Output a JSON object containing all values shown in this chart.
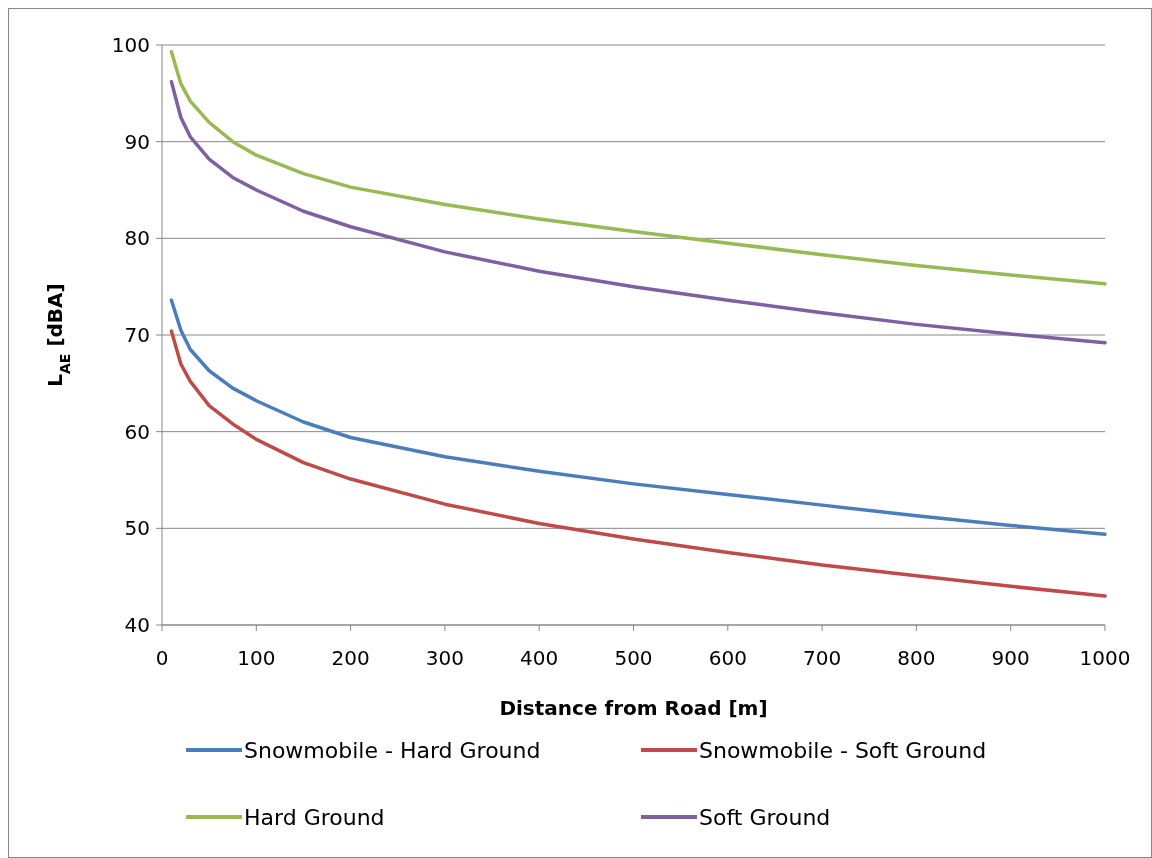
{
  "chart_data": {
    "type": "line",
    "xlabel": "Distance from Road [m]",
    "ylabel": "L$_{AE}$ [dBA]",
    "x": [
      10,
      20,
      30,
      50,
      75,
      100,
      150,
      200,
      300,
      400,
      500,
      600,
      700,
      800,
      900,
      1000
    ],
    "series": [
      {
        "name": "Snowmobile - Hard Ground",
        "color": "#4a7ebb",
        "values": [
          73.6,
          70.5,
          68.5,
          66.3,
          64.5,
          63.2,
          61,
          59.4,
          57.4,
          55.9,
          54.6,
          53.5,
          52.4,
          51.3,
          50.3,
          49.4
        ]
      },
      {
        "name": "Snowmobile - Soft Ground",
        "color": "#be4b48",
        "values": [
          70.4,
          67,
          65.2,
          62.7,
          60.8,
          59.2,
          56.8,
          55.1,
          52.5,
          50.5,
          48.9,
          47.5,
          46.2,
          45.1,
          44,
          43
        ]
      },
      {
        "name": "Hard Ground",
        "color": "#98b954",
        "values": [
          99.3,
          96,
          94.2,
          92,
          90,
          88.6,
          86.7,
          85.3,
          83.5,
          82,
          80.7,
          79.5,
          78.3,
          77.2,
          76.2,
          75.3
        ]
      },
      {
        "name": "Soft Ground",
        "color": "#7d60a0",
        "values": [
          96.2,
          92.5,
          90.5,
          88.2,
          86.3,
          85,
          82.8,
          81.2,
          78.6,
          76.6,
          75,
          73.6,
          72.3,
          71.1,
          70.1,
          69.2
        ]
      }
    ],
    "xlim": [
      0,
      1000
    ],
    "xticks": [
      0,
      100,
      200,
      300,
      400,
      500,
      600,
      700,
      800,
      900,
      1000
    ],
    "ylim": [
      40,
      100
    ],
    "yticks": [
      40,
      50,
      60,
      70,
      80,
      90,
      100
    ],
    "grid": "y",
    "legend": "bottom",
    "marker": "none",
    "line_style": "solid"
  }
}
